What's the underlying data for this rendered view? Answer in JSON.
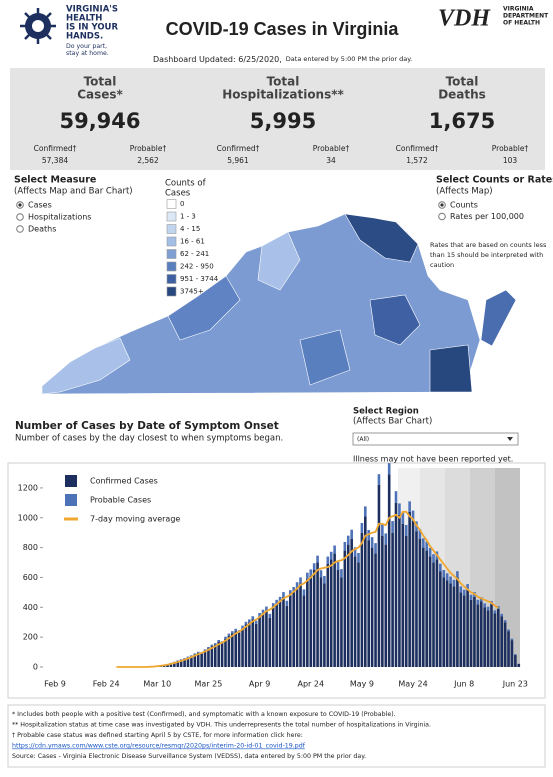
{
  "header": {
    "logo_text": [
      "VIRGINIA'S",
      "HEALTH",
      "IS IN YOUR",
      "HANDS."
    ],
    "logo_tagline": [
      "Do your part,",
      "stay at home."
    ],
    "title": "COVID-19 Cases in Virginia",
    "vdh_logo": "VDH",
    "vdh_name": [
      "VIRGINIA",
      "DEPARTMENT",
      "OF HEALTH"
    ],
    "updated": "Dashboard Updated: 6/25/2020,",
    "updated_note": "Data entered by 5:00 PM the prior day."
  },
  "stats": [
    {
      "label": [
        "Total",
        "Cases*"
      ],
      "value": "59,946",
      "sub": [
        {
          "label": "Confirmed†",
          "value": "57,384"
        },
        {
          "label": "Probable†",
          "value": "2,562"
        }
      ]
    },
    {
      "label": [
        "Total",
        "Hospitalizations**"
      ],
      "value": "5,995",
      "sub": [
        {
          "label": "Confirmed†",
          "value": "5,961"
        },
        {
          "label": "Probable†",
          "value": "34"
        }
      ]
    },
    {
      "label": [
        "Total",
        "Deaths"
      ],
      "value": "1,675",
      "sub": [
        {
          "label": "Confirmed†",
          "value": "1,572"
        },
        {
          "label": "Probable†",
          "value": "103"
        }
      ]
    }
  ],
  "measure": {
    "title": [
      "Select Measure",
      "(Affects Map and Bar Chart)"
    ],
    "options": [
      "Cases",
      "Hospitalizations",
      "Deaths"
    ],
    "selected": 0
  },
  "map_legend": {
    "title": [
      "Counts of",
      "Cases"
    ],
    "bins": [
      "0",
      "1 - 3",
      "4 - 15",
      "16 - 61",
      "62 - 241",
      "242 - 950",
      "951 - 3744",
      "3745+"
    ],
    "colors": [
      "#ffffff",
      "#dde8f6",
      "#c2d5ef",
      "#a3bfe6",
      "#7f9fd4",
      "#5a7fbf",
      "#3f61a3",
      "#27477f"
    ]
  },
  "rates": {
    "title": [
      "Select Counts or Rates",
      "(Affects Map)"
    ],
    "options": [
      "Counts",
      "Rates per 100,000"
    ],
    "selected": 0,
    "note": [
      "Rates that are based on counts less",
      "than 15 should be interpreted with",
      "caution"
    ]
  },
  "chart_section": {
    "title": "Number of Cases by Date of Symptom Onset",
    "subtitle": "Number of cases by the day closest to when symptoms began.",
    "region_title": [
      "Select Region",
      "(Affects Bar Chart)"
    ],
    "region_value": "(All)",
    "lag_note": "Illness may not have been reported yet."
  },
  "chart_data": {
    "type": "bar",
    "stacked": true,
    "categories": [
      "Feb 9",
      null,
      null,
      null,
      null,
      null,
      null,
      null,
      null,
      null,
      null,
      null,
      null,
      null,
      null,
      "Feb 24",
      null,
      null,
      null,
      null,
      null,
      null,
      null,
      null,
      null,
      null,
      null,
      null,
      null,
      null,
      "Mar 10",
      null,
      null,
      null,
      null,
      null,
      null,
      null,
      null,
      null,
      null,
      null,
      null,
      null,
      null,
      "Mar 25",
      null,
      null,
      null,
      null,
      null,
      null,
      null,
      null,
      null,
      null,
      null,
      null,
      null,
      null,
      "Apr 9",
      null,
      null,
      null,
      null,
      null,
      null,
      null,
      null,
      null,
      null,
      null,
      null,
      null,
      null,
      "Apr 24",
      null,
      null,
      null,
      null,
      null,
      null,
      null,
      null,
      null,
      null,
      null,
      null,
      null,
      null,
      "May 9",
      null,
      null,
      null,
      null,
      null,
      null,
      null,
      null,
      null,
      null,
      null,
      null,
      null,
      null,
      "May 24",
      null,
      null,
      null,
      null,
      null,
      null,
      null,
      null,
      null,
      null,
      null,
      null,
      null,
      null,
      "Jun 8",
      null,
      null,
      null,
      null,
      null,
      null,
      null,
      null,
      null,
      null,
      null,
      null,
      null,
      null,
      "Jun 23",
      null
    ],
    "series": [
      {
        "name": "Confirmed Cases",
        "color": "#1c2f5e",
        "values": [
          0,
          0,
          0,
          0,
          0,
          0,
          0,
          0,
          0,
          0,
          0,
          0,
          0,
          0,
          0,
          0,
          0,
          0,
          0,
          0,
          0,
          0,
          0,
          0,
          0,
          1,
          0,
          2,
          3,
          5,
          7,
          10,
          14,
          18,
          25,
          32,
          40,
          48,
          55,
          65,
          72,
          85,
          95,
          90,
          110,
          125,
          140,
          150,
          170,
          160,
          190,
          210,
          225,
          240,
          230,
          260,
          285,
          300,
          320,
          290,
          340,
          360,
          380,
          330,
          400,
          420,
          440,
          470,
          410,
          480,
          500,
          530,
          560,
          480,
          590,
          610,
          650,
          700,
          600,
          560,
          690,
          720,
          760,
          650,
          600,
          780,
          820,
          860,
          740,
          700,
          900,
          1010,
          850,
          800,
          760,
          1220,
          880,
          820,
          1290,
          900,
          1100,
          1020,
          960,
          880,
          1040,
          980,
          910,
          860,
          800,
          780,
          740,
          700,
          720,
          640,
          600,
          580,
          560,
          540,
          600,
          500,
          480,
          520,
          450,
          470,
          420,
          440,
          400,
          380,
          420,
          360,
          390,
          340,
          300,
          240,
          180,
          80,
          20
        ]
      },
      {
        "name": "Probable Cases",
        "color": "#4e72b8",
        "values": [
          0,
          0,
          0,
          0,
          0,
          0,
          0,
          0,
          0,
          0,
          0,
          0,
          0,
          0,
          0,
          0,
          0,
          0,
          0,
          0,
          0,
          0,
          0,
          0,
          0,
          0,
          0,
          0,
          0,
          0,
          1,
          1,
          2,
          2,
          3,
          3,
          4,
          4,
          5,
          5,
          6,
          6,
          7,
          8,
          8,
          9,
          10,
          10,
          11,
          12,
          13,
          14,
          15,
          16,
          16,
          17,
          18,
          19,
          20,
          20,
          22,
          24,
          25,
          26,
          28,
          30,
          30,
          32,
          34,
          35,
          36,
          38,
          40,
          40,
          42,
          44,
          45,
          46,
          48,
          50,
          50,
          52,
          54,
          55,
          56,
          58,
          60,
          60,
          62,
          64,
          65,
          66,
          68,
          70,
          70,
          72,
          74,
          75,
          76,
          78,
          78,
          76,
          74,
          72,
          70,
          68,
          66,
          64,
          62,
          60,
          58,
          56,
          54,
          52,
          50,
          48,
          46,
          44,
          42,
          40,
          38,
          36,
          34,
          32,
          30,
          28,
          26,
          24,
          22,
          20,
          18,
          16,
          14,
          12,
          10,
          6,
          2
        ]
      },
      {
        "name": "7-day moving average",
        "color": "#f0a830",
        "type": "line",
        "values": [
          null,
          null,
          null,
          null,
          null,
          null,
          null,
          null,
          null,
          null,
          null,
          null,
          null,
          null,
          null,
          null,
          null,
          null,
          0,
          0,
          0,
          0,
          0,
          0,
          0,
          0,
          0,
          0,
          2,
          3,
          6,
          8,
          12,
          16,
          21,
          27,
          34,
          41,
          49,
          57,
          66,
          76,
          86,
          94,
          104,
          115,
          127,
          139,
          152,
          163,
          177,
          193,
          209,
          225,
          237,
          252,
          270,
          288,
          306,
          318,
          335,
          355,
          375,
          385,
          400,
          420,
          440,
          460,
          470,
          485,
          505,
          525,
          550,
          560,
          580,
          600,
          625,
          650,
          660,
          665,
          670,
          680,
          700,
          710,
          715,
          730,
          750,
          775,
          790,
          800,
          830,
          880,
          890,
          900,
          905,
          960,
          960,
          950,
          1000,
          1010,
          1020,
          1000,
          1040,
          1040,
          1010,
          990,
          950,
          920,
          880,
          850,
          810,
          780,
          750,
          720,
          690,
          660,
          630,
          610,
          590,
          560,
          540,
          520,
          500,
          490,
          470,
          460,
          450,
          440,
          430,
          410,
          395,
          null,
          null,
          null,
          null,
          null,
          null
        ]
      }
    ],
    "ylim": [
      0,
      1320
    ],
    "yticks": [
      0,
      200,
      400,
      600,
      800,
      1000,
      1200
    ]
  },
  "footnotes": [
    "* Includes both people with a positive test (Confirmed), and symptomatic with a known exposure to COVID-19 (Probable).",
    "** Hospitalization status at time case was investigated by VDH. This underrepresents the total number of hospitalizations in Virginia.",
    "† Probable case status was defined starting April 5 by CSTE, for more information click here:",
    "https://cdn.ymaws.com/www.cste.org/resource/resmgr/2020ps/interim-20-id-01_covid-19.pdf",
    "Source:  Cases - Virginia Electronic Disease Surveillance System (VEDSS), data entered by 5:00 PM the prior day."
  ]
}
